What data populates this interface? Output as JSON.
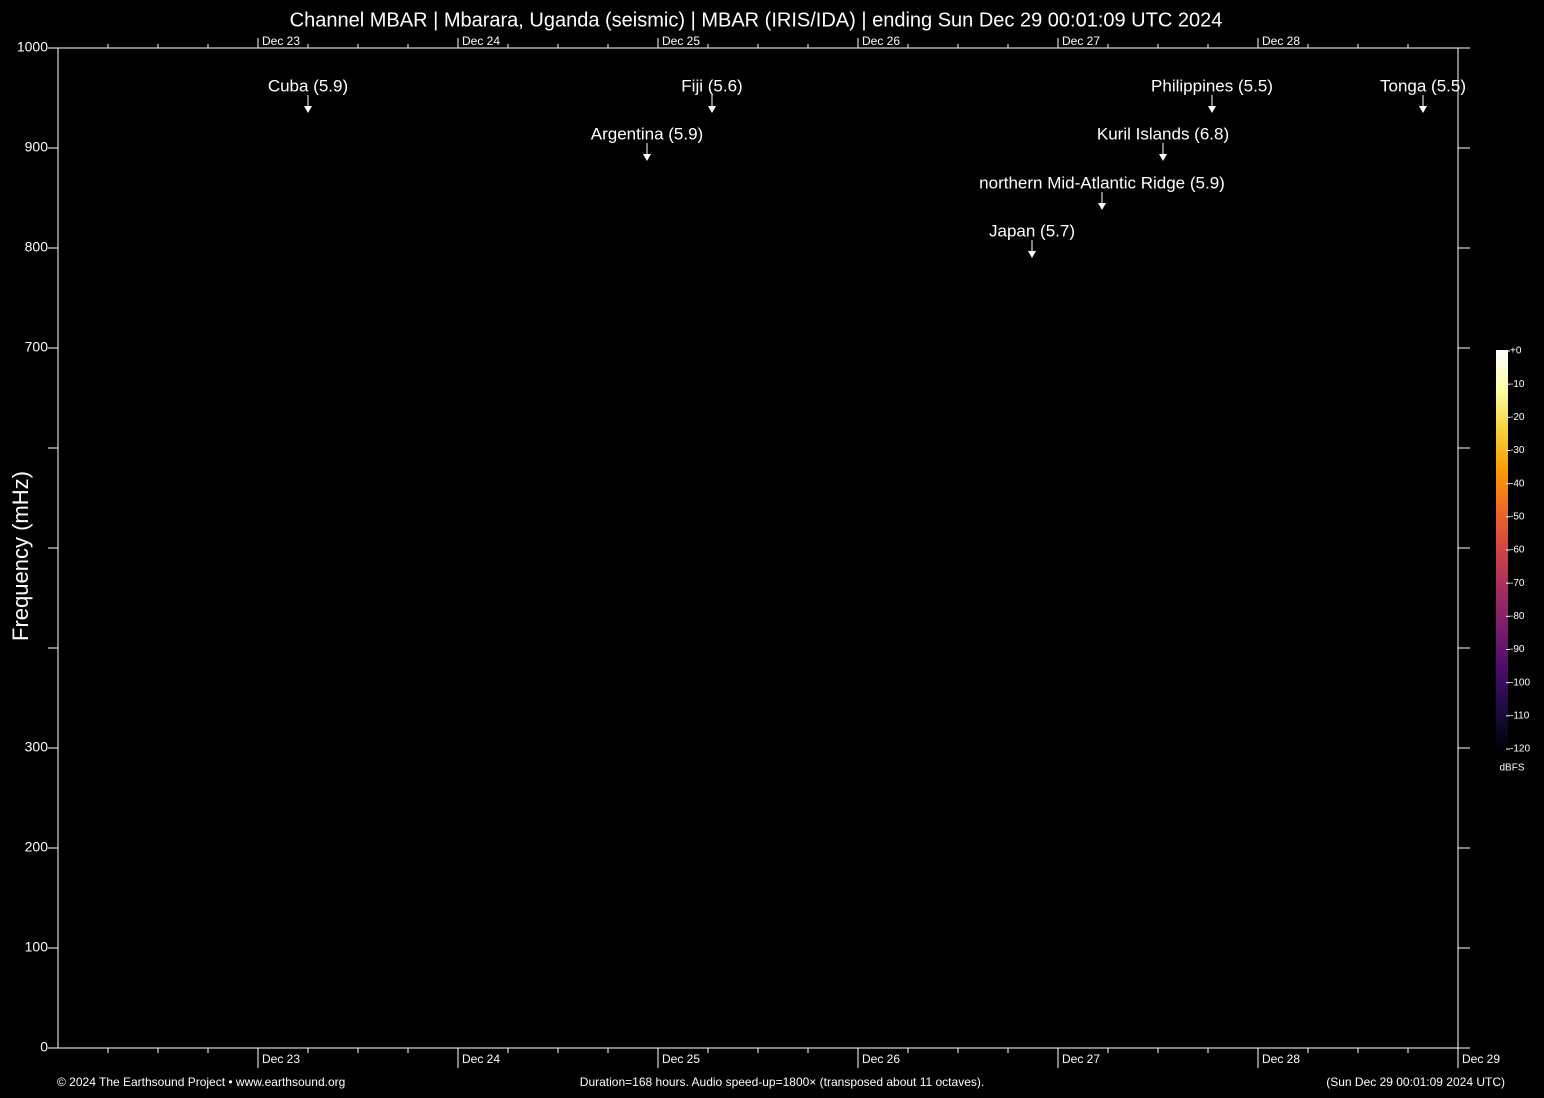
{
  "chart_data": {
    "type": "spectrogram",
    "title": "Channel MBAR | Mbarara, Uganda (seismic) | MBAR (IRIS/IDA) | ending Sun Dec 29 00:01:09 UTC 2024",
    "y_label": "Frequency (mHz)",
    "xlim": [
      22,
      29
    ],
    "xticks": [
      {
        "value": 23,
        "label": "Dec 23"
      },
      {
        "value": 24,
        "label": "Dec 24"
      },
      {
        "value": 25,
        "label": "Dec 25"
      },
      {
        "value": 26,
        "label": "Dec 26"
      },
      {
        "value": 27,
        "label": "Dec 27"
      },
      {
        "value": 28,
        "label": "Dec 28"
      },
      {
        "value": 29,
        "label": "Dec 29"
      }
    ],
    "minor_xticks": [
      22.25,
      22.5,
      22.75,
      23.25,
      23.5,
      23.75,
      24.25,
      24.5,
      24.75,
      25.25,
      25.5,
      25.75,
      26.25,
      26.5,
      26.75,
      27.25,
      27.5,
      27.75,
      28.25,
      28.5,
      28.75
    ],
    "ylim": [
      0,
      1000
    ],
    "yticks": [
      0,
      100,
      200,
      300,
      700,
      800,
      900,
      1000
    ],
    "minor_yticks": [
      400,
      500,
      600
    ],
    "annotations": [
      {
        "label": "Cuba (5.9)",
        "x": 23.25,
        "y": 935
      },
      {
        "label": "Argentina (5.9)",
        "x": 24.945,
        "y": 887
      },
      {
        "label": "Fiji (5.6)",
        "x": 25.27,
        "y": 935
      },
      {
        "label": "Japan (5.7)",
        "x": 26.87,
        "y": 790
      },
      {
        "label": "northern Mid-Atlantic Ridge (5.9)",
        "x": 27.22,
        "y": 838
      },
      {
        "label": "Kuril Islands (6.8)",
        "x": 27.525,
        "y": 887
      },
      {
        "label": "Philippines (5.5)",
        "x": 27.77,
        "y": 935
      },
      {
        "label": "Tonga (5.5)",
        "x": 28.825,
        "y": 935
      }
    ],
    "colorbar": {
      "label": "dBFS",
      "clim": [
        -120,
        0
      ],
      "ticks": [
        {
          "value": 0,
          "label": "+0"
        },
        -10,
        -20,
        -30,
        -40,
        -50,
        -60,
        -70,
        -80,
        -90,
        -100,
        -110,
        -120
      ],
      "colors": [
        "#000004",
        "#1b0c41",
        "#4a0c6b",
        "#781c6d",
        "#a52c60",
        "#cf4446",
        "#ed6925",
        "#fb9b06",
        "#f7d13d",
        "#fcffa4",
        "#ffffff"
      ]
    },
    "footer_left": "© 2024 The Earthsound Project • www.earthsound.org",
    "footer_center": "Duration=168 hours. Audio speed-up=1800× (transposed about 11 octaves).",
    "footer_right": "(Sun Dec 29 00:01:09 2024 UTC)"
  }
}
